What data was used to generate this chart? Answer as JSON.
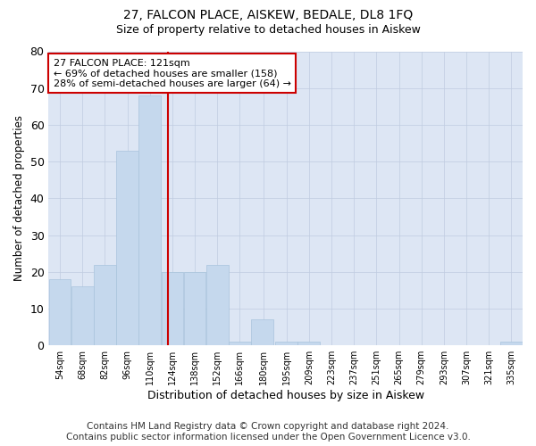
{
  "title": "27, FALCON PLACE, AISKEW, BEDALE, DL8 1FQ",
  "subtitle": "Size of property relative to detached houses in Aiskew",
  "xlabel": "Distribution of detached houses by size in Aiskew",
  "ylabel": "Number of detached properties",
  "bar_color": "#c5d8ed",
  "bar_edgecolor": "#a8c4dc",
  "grid_color": "#c0cce0",
  "background_color": "#dde6f4",
  "vline_x": 121,
  "vline_color": "#cc0000",
  "annotation_line1": "27 FALCON PLACE: 121sqm",
  "annotation_line2": "← 69% of detached houses are smaller (158)",
  "annotation_line3": "28% of semi-detached houses are larger (64) →",
  "annotation_box_edgecolor": "#cc0000",
  "categories": [
    "54sqm",
    "68sqm",
    "82sqm",
    "96sqm",
    "110sqm",
    "124sqm",
    "138sqm",
    "152sqm",
    "166sqm",
    "180sqm",
    "195sqm",
    "209sqm",
    "223sqm",
    "237sqm",
    "251sqm",
    "265sqm",
    "279sqm",
    "293sqm",
    "307sqm",
    "321sqm",
    "335sqm"
  ],
  "bin_edges": [
    47,
    61,
    75,
    89,
    103,
    117,
    131,
    145,
    159,
    173,
    188,
    202,
    216,
    230,
    244,
    258,
    272,
    286,
    300,
    314,
    328,
    342
  ],
  "values": [
    18,
    16,
    22,
    53,
    68,
    20,
    20,
    22,
    1,
    7,
    1,
    1,
    0,
    0,
    0,
    0,
    0,
    0,
    0,
    0,
    1
  ],
  "ylim": [
    0,
    80
  ],
  "yticks": [
    0,
    10,
    20,
    30,
    40,
    50,
    60,
    70,
    80
  ],
  "footer": "Contains HM Land Registry data © Crown copyright and database right 2024.\nContains public sector information licensed under the Open Government Licence v3.0.",
  "footer_fontsize": 7.5,
  "title_fontsize": 10,
  "subtitle_fontsize": 9
}
